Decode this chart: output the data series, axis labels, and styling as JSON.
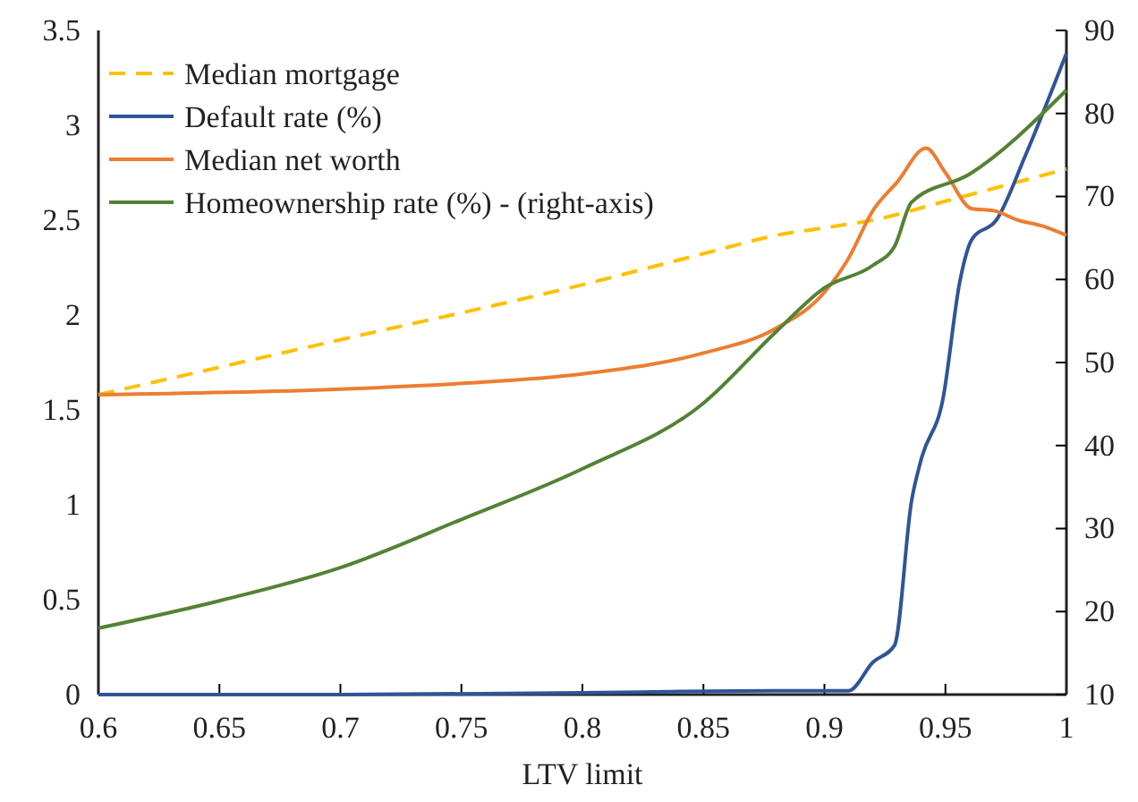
{
  "chart_data": {
    "type": "line",
    "xlabel": "LTV limit",
    "xlim": [
      0.6,
      1
    ],
    "xticks": [
      0.6,
      0.65,
      0.7,
      0.75,
      0.8,
      0.85,
      0.9,
      0.95,
      1
    ],
    "ylim": [
      0,
      3.5
    ],
    "yticks": [
      0,
      0.5,
      1,
      1.5,
      2,
      2.5,
      3,
      3.5
    ],
    "y2lim": [
      10,
      90
    ],
    "y2ticks": [
      10,
      20,
      30,
      40,
      50,
      60,
      70,
      80,
      90
    ],
    "grid": false,
    "legend": "top left",
    "marker": "none",
    "series": [
      {
        "name": "Median mortgage",
        "color": "#ffc000",
        "line_style": "dashed",
        "x": [
          0.6,
          0.7,
          0.8,
          0.855,
          0.88,
          0.9,
          0.92,
          0.95,
          1.0
        ],
        "values": [
          1.58,
          1.87,
          2.16,
          2.34,
          2.42,
          2.46,
          2.5,
          2.6,
          2.77
        ]
      },
      {
        "name": "Default rate (%)",
        "color": "#2f5597",
        "line_style": "solid",
        "x": [
          0.6,
          0.7,
          0.8,
          0.88,
          0.9,
          0.91,
          0.92,
          0.929,
          0.936,
          0.94,
          0.949,
          0.956,
          0.961,
          0.971,
          0.983,
          1.0
        ],
        "values": [
          0,
          0,
          0.01,
          0.02,
          0.02,
          0.02,
          0.17,
          0.26,
          1.02,
          1.24,
          1.56,
          2.18,
          2.4,
          2.5,
          2.84,
          3.38
        ]
      },
      {
        "name": "Median net worth",
        "color": "#ed7d31",
        "line_style": "solid",
        "x": [
          0.6,
          0.7,
          0.75,
          0.8,
          0.85,
          0.88,
          0.9,
          0.91,
          0.92,
          0.93,
          0.942,
          0.95,
          0.961,
          0.97,
          0.98,
          0.99,
          1.0
        ],
        "values": [
          1.58,
          1.61,
          1.64,
          1.69,
          1.8,
          1.93,
          2.12,
          2.3,
          2.55,
          2.7,
          2.88,
          2.75,
          2.56,
          2.55,
          2.5,
          2.47,
          2.42
        ]
      },
      {
        "name": "Homeownership rate (%) - (right-axis)",
        "color": "#548235",
        "line_style": "solid",
        "axis": "y2",
        "x": [
          0.6,
          0.65,
          0.7,
          0.75,
          0.8,
          0.85,
          0.88,
          0.9,
          0.92,
          0.929,
          0.936,
          0.96,
          1.0
        ],
        "values": [
          18,
          21.3,
          25.3,
          31.1,
          37.2,
          45.1,
          53.7,
          59,
          61.7,
          64,
          69.3,
          72.7,
          82.8
        ]
      }
    ]
  }
}
